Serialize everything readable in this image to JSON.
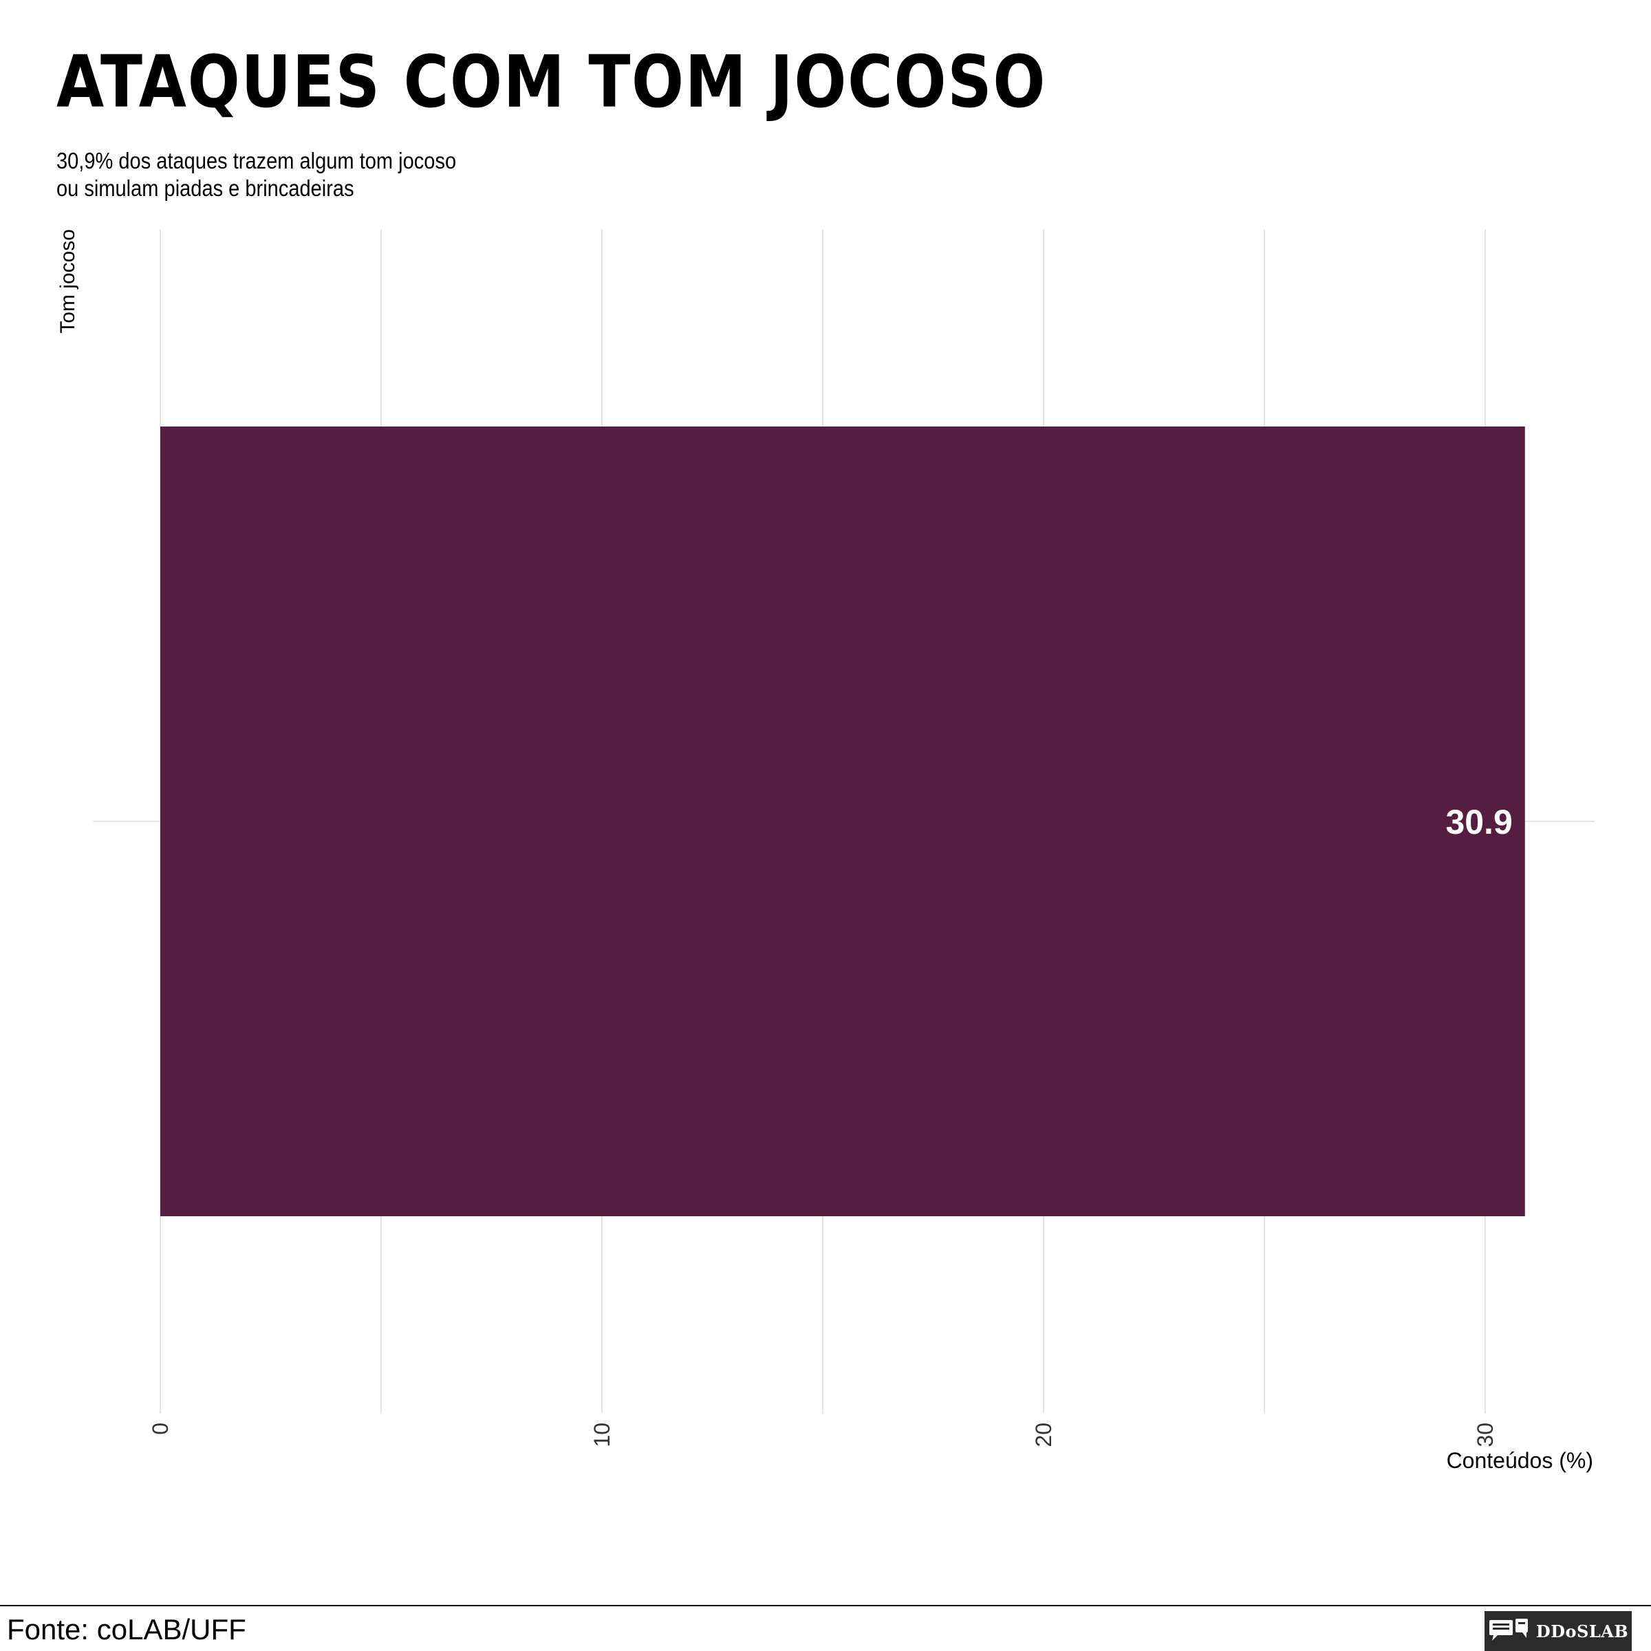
{
  "title": "ATAQUES COM TOM JOCOSO",
  "subtitle": {
    "line1": "30,9% dos ataques trazem algum tom jocoso",
    "line2": "ou simulam piadas e brincadeiras"
  },
  "footer": {
    "source": "Fonte: coLAB/UFF",
    "logo_text": "DDoSLAB",
    "logo_icon": "chat-bubbles-icon"
  },
  "colors": {
    "bar": "#551E41",
    "grid": "#DDDDDD",
    "bar_label": "#FFFFFF",
    "logo_bg": "#2B2B2B"
  },
  "chart_data": {
    "type": "bar",
    "orientation": "horizontal",
    "categories": [
      ""
    ],
    "values": [
      30.9
    ],
    "value_labels": [
      "30.9"
    ],
    "xlabel": "Conteúdos (%)",
    "ylabel": "Tom jocoso",
    "xlim": [
      0,
      31
    ],
    "xticks": [
      0,
      10,
      20,
      30
    ],
    "xtick_labels": [
      "0",
      "10",
      "20",
      "30"
    ],
    "grid": true
  }
}
